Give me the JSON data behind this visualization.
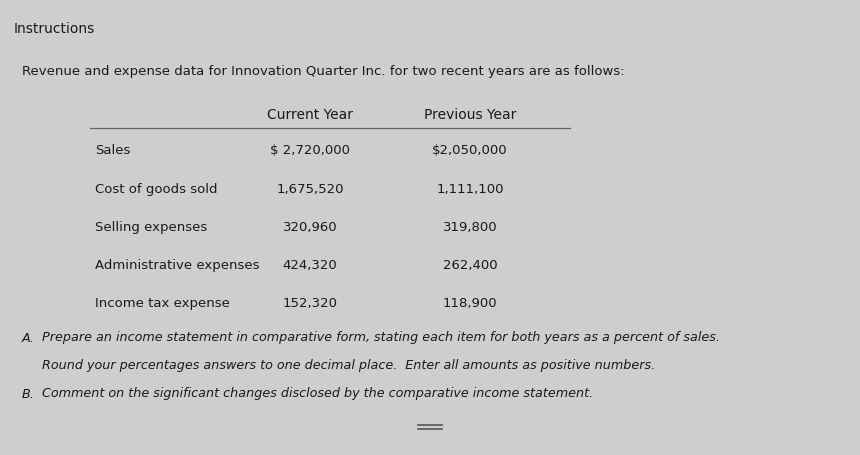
{
  "title": "Instructions",
  "intro_text": "Revenue and expense data for Innovation Quarter Inc. for two recent years are as follows:",
  "col_headers": [
    "Current Year",
    "Previous Year"
  ],
  "rows": [
    {
      "label": "Sales",
      "current": "$ 2,720,000",
      "previous": "$2,050,000"
    },
    {
      "label": "Cost of goods sold",
      "current": "1,675,520",
      "previous": "1,111,100"
    },
    {
      "label": "Selling expenses",
      "current": "320,960",
      "previous": "319,800"
    },
    {
      "label": "Administrative expenses",
      "current": "424,320",
      "previous": "262,400"
    },
    {
      "label": "Income tax expense",
      "current": "152,320",
      "previous": "118,900"
    }
  ],
  "instructions": [
    [
      "A.",
      "Prepare an income statement in comparative form, stating each item for both years as a percent of sales."
    ],
    [
      "",
      "Round your percentages answers to one decimal place.  Enter all amounts as positive numbers."
    ],
    [
      "B.",
      "Comment on the significant changes disclosed by the comparative income statement."
    ]
  ],
  "bg_top_strip": "#aaaaaa",
  "bg_header": "#c2c2c2",
  "bg_main": "#cecece",
  "bg_bottom_strip": "#b4b4b4",
  "text_color": "#1a1a1a",
  "header_font_size": 10,
  "body_font_size": 9.5,
  "italic_font_size": 9.2
}
